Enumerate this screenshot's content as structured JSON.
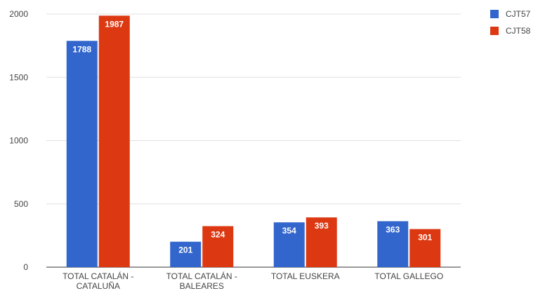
{
  "chart_data": {
    "type": "bar",
    "title": "",
    "xlabel": "",
    "ylabel": "",
    "categories": [
      [
        "TOTAL CATALÁN -",
        "CATALUÑA"
      ],
      [
        "TOTAL CATALÁN -",
        "BALEARES"
      ],
      [
        "TOTAL EUSKERA"
      ],
      [
        "TOTAL GALLEGO"
      ]
    ],
    "series": [
      {
        "name": "CJT57",
        "color": "#3366cc",
        "values": [
          1788,
          201,
          354,
          363
        ]
      },
      {
        "name": "CJT58",
        "color": "#dc3912",
        "values": [
          1987,
          324,
          393,
          301
        ]
      }
    ],
    "ylim": [
      0,
      2000
    ],
    "yticks": [
      0,
      500,
      1000,
      1500,
      2000
    ],
    "grid": true,
    "legend": "top-right",
    "data_labels": true,
    "colors": {
      "gridline": "#e0e0e0",
      "baseline": "#333333",
      "label_text": "#444444",
      "bar_label_text": "#ffffff"
    }
  }
}
